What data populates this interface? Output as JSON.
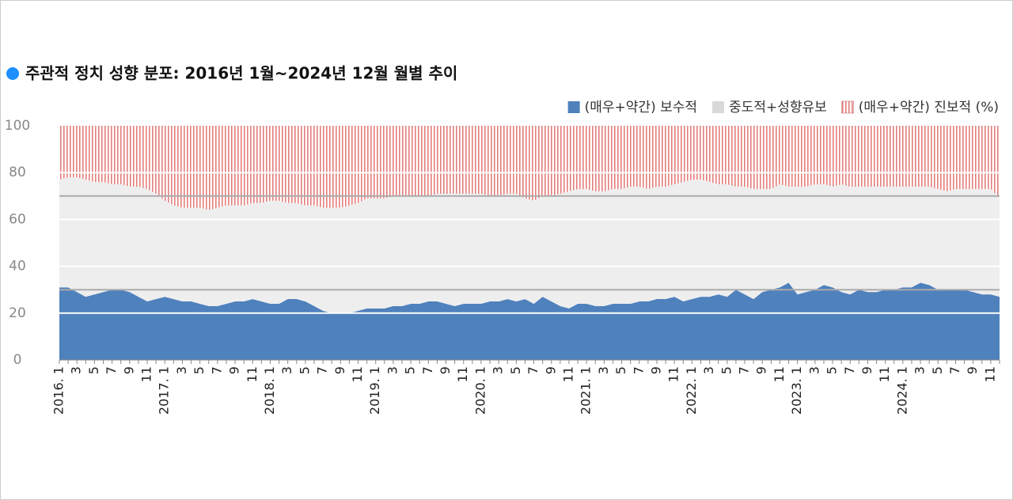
{
  "chart_data": {
    "type": "stacked-area",
    "title": "주관적 정치 성향 분포: 2016년 1월~2024년 12월 월별 추이",
    "categories": [
      "2016. 1",
      null,
      "3",
      null,
      "5",
      null,
      "7",
      null,
      "9",
      null,
      "11",
      null,
      "2017. 1",
      null,
      "3",
      null,
      "5",
      null,
      "7",
      null,
      "9",
      null,
      "11",
      null,
      "2018. 1",
      null,
      "3",
      null,
      "5",
      null,
      "7",
      null,
      "9",
      null,
      "11",
      null,
      "2019. 1",
      null,
      "3",
      null,
      "5",
      null,
      "7",
      null,
      "9",
      null,
      "11",
      null,
      "2020. 1",
      null,
      "3",
      null,
      "5",
      null,
      "7",
      null,
      "9",
      null,
      "11",
      null,
      "2021. 1",
      null,
      "3",
      null,
      "5",
      null,
      "7",
      null,
      "9",
      null,
      "11",
      null,
      "2022. 1",
      null,
      "3",
      null,
      "5",
      null,
      "7",
      null,
      "9",
      null,
      "11",
      null,
      "2023. 1",
      null,
      "3",
      null,
      "5",
      null,
      "7",
      null,
      "9",
      null,
      "11",
      null,
      "2024. 1",
      null,
      "3",
      null,
      "5",
      null,
      "7",
      null,
      "9",
      null,
      "11",
      null
    ],
    "series": [
      {
        "name": "(매우+약간) 보수적",
        "color": "#4f81bd",
        "values": [
          31,
          31,
          29,
          27,
          28,
          29,
          30,
          30,
          29,
          27,
          25,
          26,
          27,
          26,
          25,
          25,
          24,
          23,
          23,
          24,
          25,
          25,
          26,
          25,
          24,
          24,
          26,
          26,
          25,
          23,
          21,
          20,
          20,
          20,
          21,
          22,
          22,
          22,
          23,
          23,
          24,
          24,
          25,
          25,
          24,
          23,
          24,
          24,
          24,
          25,
          25,
          26,
          25,
          26,
          24,
          27,
          25,
          23,
          22,
          24,
          24,
          23,
          23,
          24,
          24,
          24,
          25,
          25,
          26,
          26,
          27,
          25,
          26,
          27,
          27,
          28,
          27,
          30,
          28,
          26,
          29,
          30,
          31,
          33,
          28,
          29,
          30,
          32,
          31,
          29,
          28,
          30,
          29,
          29,
          30,
          30,
          31,
          31,
          33,
          32,
          30,
          30,
          30,
          30,
          29,
          28,
          28,
          27
        ]
      },
      {
        "name": "중도적+성향유보",
        "color": "#eeeeee",
        "values": [
          46,
          47,
          49,
          50,
          48,
          47,
          45,
          45,
          45,
          47,
          48,
          45,
          41,
          40,
          40,
          40,
          41,
          41,
          42,
          42,
          41,
          41,
          41,
          42,
          44,
          44,
          41,
          41,
          41,
          43,
          44,
          45,
          45,
          46,
          46,
          47,
          47,
          47,
          47,
          47,
          46,
          46,
          45,
          46,
          47,
          48,
          47,
          47,
          47,
          45,
          45,
          45,
          46,
          43,
          44,
          43,
          45,
          48,
          50,
          49,
          49,
          49,
          49,
          49,
          49,
          50,
          49,
          48,
          48,
          48,
          48,
          51,
          51,
          50,
          49,
          47,
          48,
          44,
          46,
          47,
          44,
          43,
          44,
          41,
          46,
          45,
          45,
          43,
          43,
          46,
          46,
          44,
          45,
          45,
          44,
          44,
          43,
          43,
          41,
          42,
          43,
          42,
          43,
          43,
          44,
          45,
          45,
          42
        ]
      },
      {
        "name": "(매우+약간) 진보적 (%)",
        "color": "#c0504d",
        "values": [
          23,
          22,
          22,
          23,
          24,
          24,
          25,
          25,
          26,
          26,
          27,
          29,
          32,
          34,
          35,
          35,
          35,
          36,
          35,
          34,
          34,
          34,
          33,
          33,
          32,
          32,
          33,
          33,
          34,
          34,
          35,
          35,
          35,
          34,
          33,
          31,
          31,
          31,
          30,
          30,
          30,
          30,
          30,
          29,
          29,
          29,
          29,
          29,
          29,
          30,
          30,
          29,
          29,
          31,
          32,
          30,
          30,
          29,
          28,
          27,
          27,
          28,
          28,
          27,
          27,
          26,
          26,
          27,
          26,
          26,
          25,
          24,
          23,
          23,
          24,
          25,
          25,
          26,
          26,
          27,
          27,
          27,
          25,
          26,
          26,
          26,
          25,
          25,
          26,
          25,
          26,
          26,
          26,
          26,
          26,
          26,
          26,
          26,
          26,
          26,
          27,
          28,
          27,
          27,
          27,
          27,
          27,
          31
        ]
      }
    ],
    "ylim": [
      0,
      100
    ],
    "yticks": [
      0,
      20,
      40,
      60,
      80,
      100
    ],
    "grid": true,
    "reference_lines": [
      30,
      70
    ],
    "legend": "top-right"
  }
}
